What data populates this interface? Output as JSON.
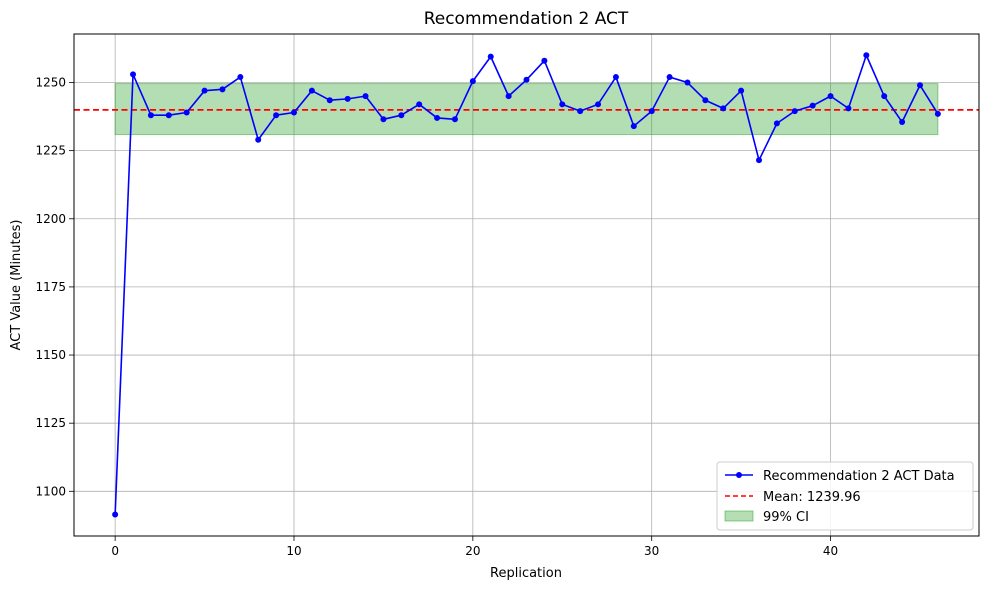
{
  "chart_data": {
    "type": "line",
    "title": "Recommendation 2 ACT",
    "xlabel": "Replication",
    "ylabel": "ACT Value (Minutes)",
    "xlim": [
      -2.3,
      48.3
    ],
    "ylim": [
      1083.6,
      1267.8
    ],
    "x_ticks": [
      0,
      10,
      20,
      30,
      40
    ],
    "y_ticks": [
      1100,
      1125,
      1150,
      1175,
      1200,
      1225,
      1250
    ],
    "grid": true,
    "legend_position": "lower-right",
    "series": [
      {
        "name": "Recommendation 2 ACT Data",
        "color": "#0000ff",
        "marker": "circle",
        "x": [
          0,
          1,
          2,
          3,
          4,
          5,
          6,
          7,
          8,
          9,
          10,
          11,
          12,
          13,
          14,
          15,
          16,
          17,
          18,
          19,
          20,
          21,
          22,
          23,
          24,
          25,
          26,
          27,
          28,
          29,
          30,
          31,
          32,
          33,
          34,
          35,
          36,
          37,
          38,
          39,
          40,
          41,
          42,
          43,
          44,
          45,
          46
        ],
        "values": [
          1091.5,
          1253,
          1238,
          1238,
          1239,
          1247,
          1247.5,
          1252,
          1229,
          1238,
          1239,
          1247,
          1243.5,
          1244,
          1245,
          1236.5,
          1238,
          1242,
          1237,
          1236.5,
          1250.5,
          1259.5,
          1245,
          1251,
          1258,
          1242,
          1239.5,
          1242,
          1252,
          1234,
          1239.5,
          1252,
          1250,
          1243.5,
          1240.5,
          1247,
          1221.5,
          1235,
          1239.5,
          1241.5,
          1245,
          1240.5,
          1260,
          1245,
          1235.5,
          1249,
          1238.5
        ]
      }
    ],
    "mean": {
      "label": "Mean: 1239.96",
      "value": 1239.96,
      "color": "#ff0000"
    },
    "ci": {
      "label": "99% CI",
      "lower": 1230.9,
      "upper": 1249.6,
      "x_start": 0,
      "x_end": 46,
      "color": "#2ca02c"
    }
  }
}
